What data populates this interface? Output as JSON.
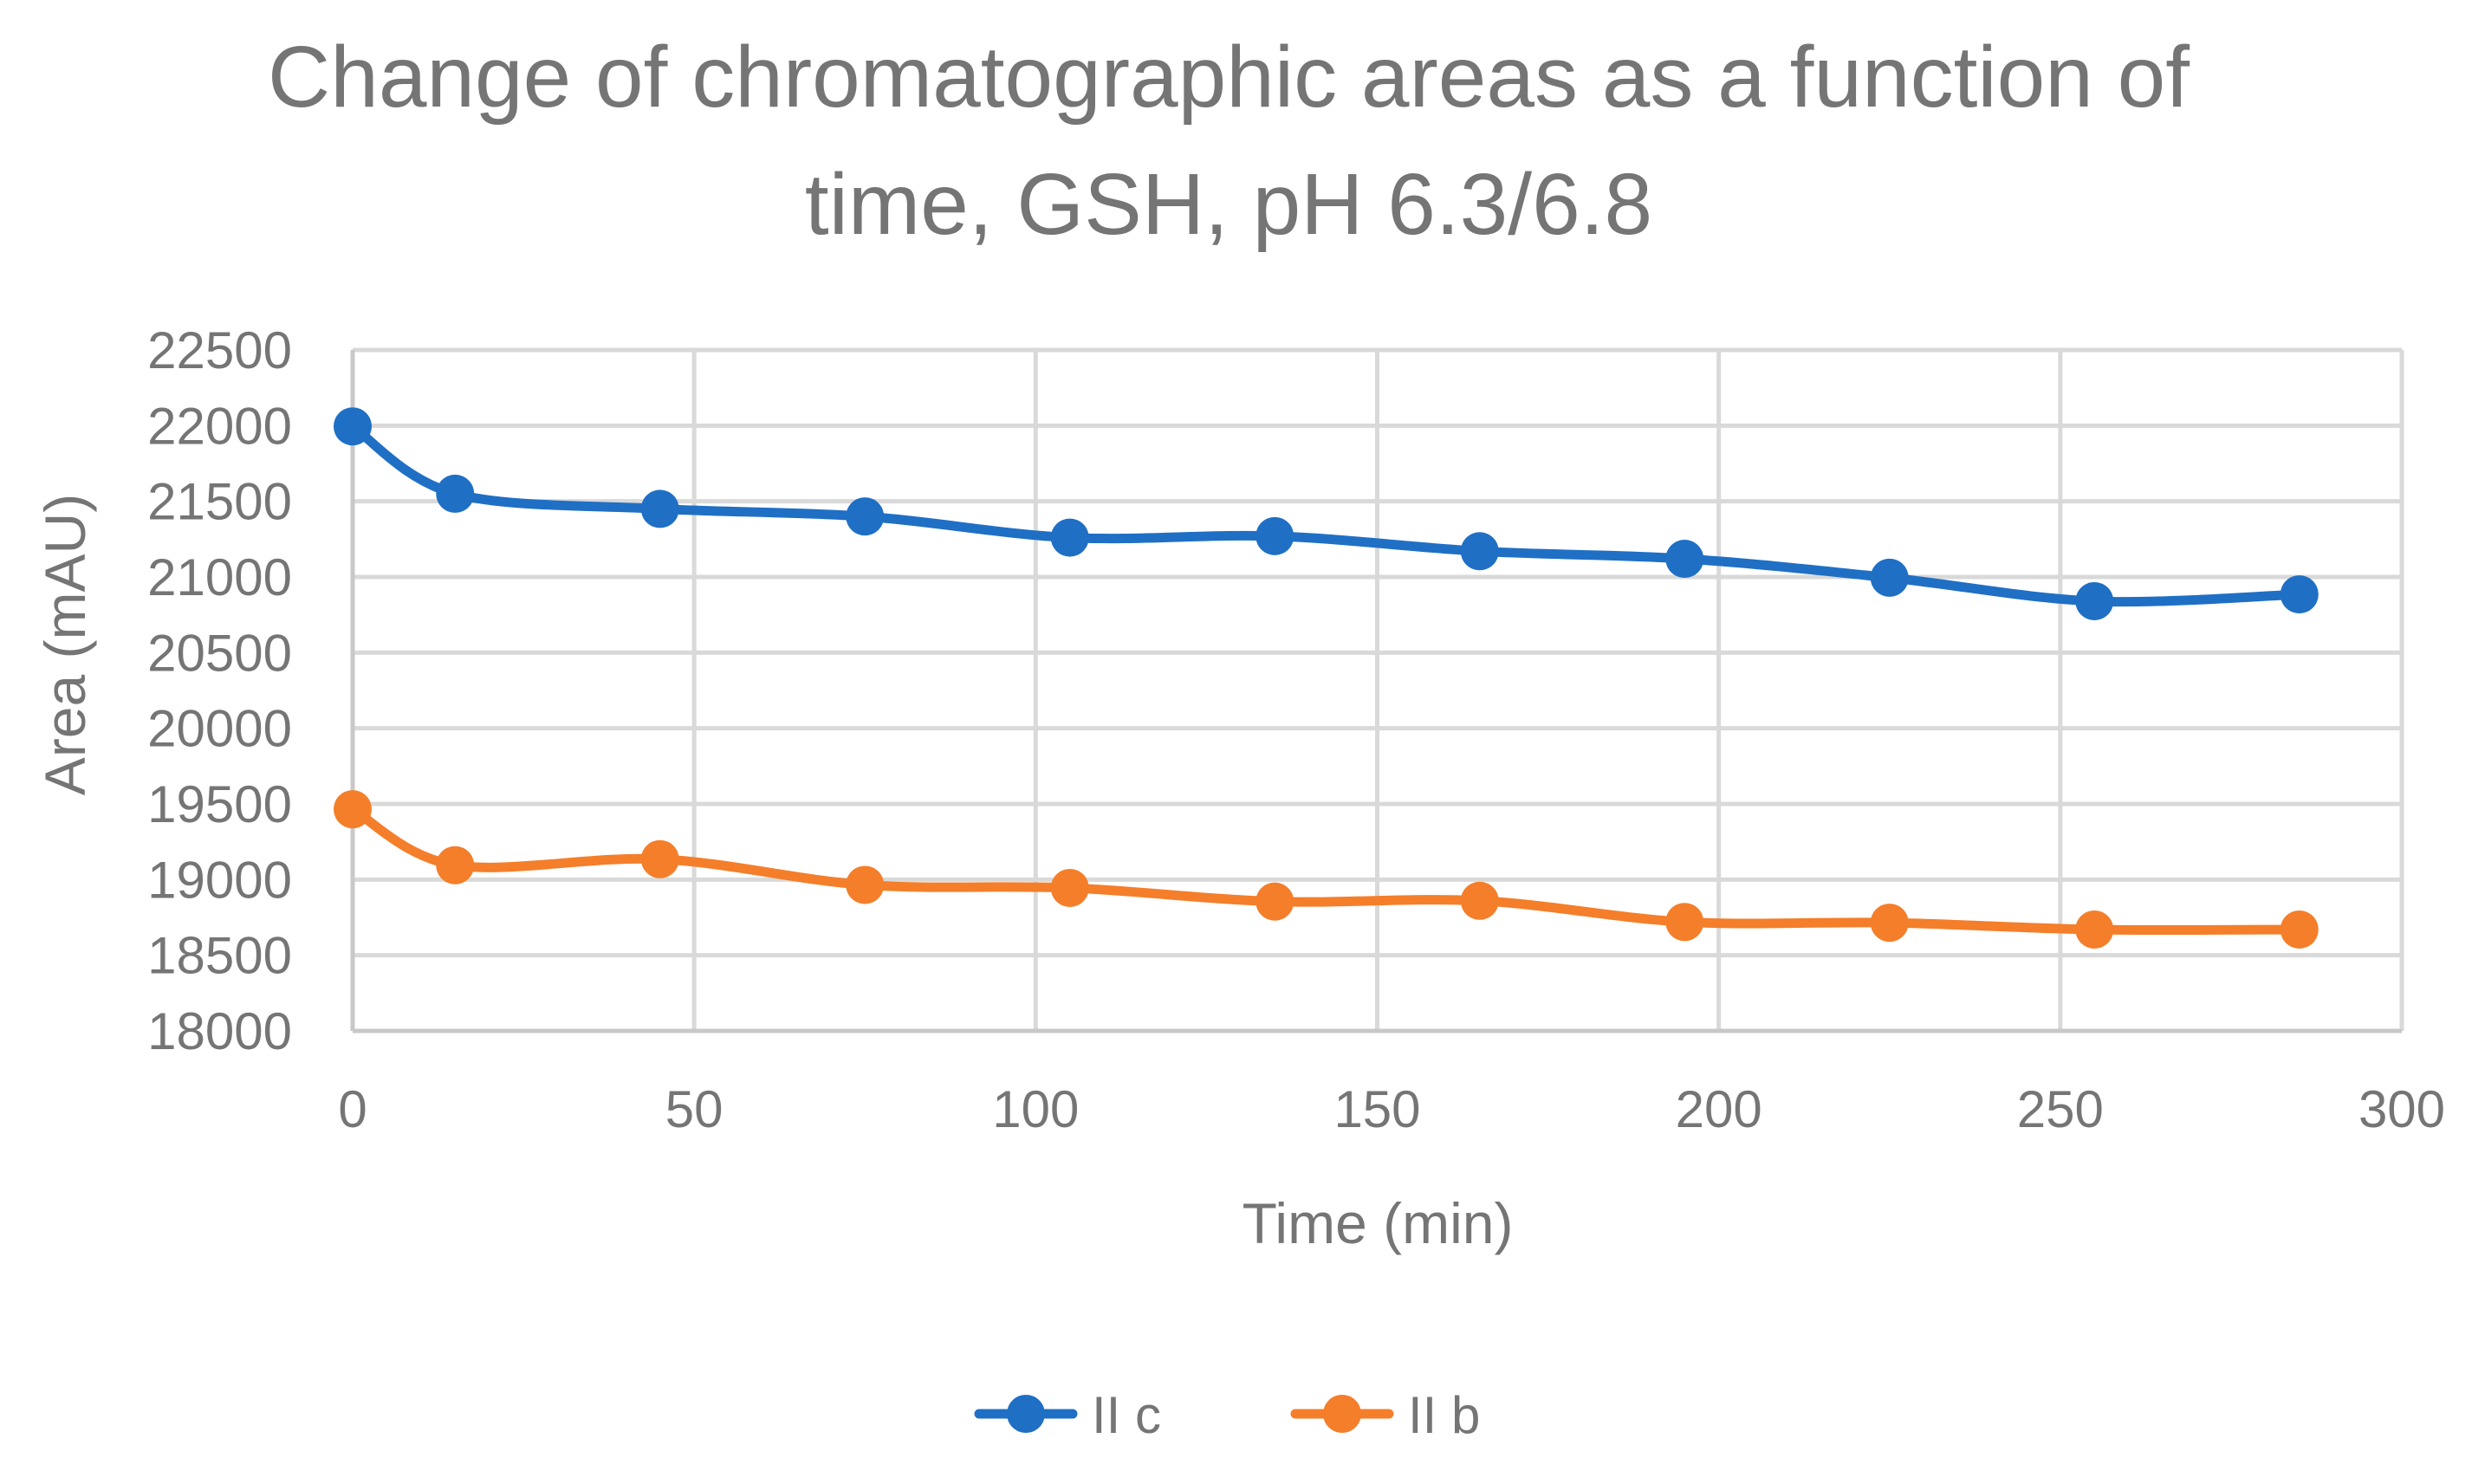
{
  "chart_data": {
    "type": "line",
    "title": "Change of chromatographic areas as a function of time, GSH, pH 6.3/6.8",
    "title_lines": [
      "Change of chromatographic areas as a function of",
      "time, GSH, pH 6.3/6.8"
    ],
    "xlabel": "Time (min)",
    "ylabel": "Area (mAU)",
    "xlim": [
      0,
      300
    ],
    "ylim": [
      18000,
      22500
    ],
    "x_ticks": [
      0,
      50,
      100,
      150,
      200,
      250,
      300
    ],
    "y_ticks": [
      18000,
      18500,
      19000,
      19500,
      20000,
      20500,
      21000,
      21500,
      22000,
      22500
    ],
    "grid": true,
    "smooth": true,
    "legend_position": "bottom",
    "series": [
      {
        "name": "II c",
        "color": "#1f6fc5",
        "x": [
          0,
          15,
          45,
          75,
          105,
          135,
          165,
          195,
          225,
          255,
          285
        ],
        "y": [
          21995,
          21550,
          21450,
          21400,
          21260,
          21270,
          21170,
          21120,
          20995,
          20840,
          20885
        ]
      },
      {
        "name": "II b",
        "color": "#f47e2a",
        "x": [
          0,
          15,
          45,
          75,
          105,
          135,
          165,
          195,
          225,
          255,
          285
        ],
        "y": [
          19465,
          19095,
          19135,
          18965,
          18945,
          18855,
          18860,
          18720,
          18715,
          18670,
          18670
        ]
      }
    ]
  }
}
